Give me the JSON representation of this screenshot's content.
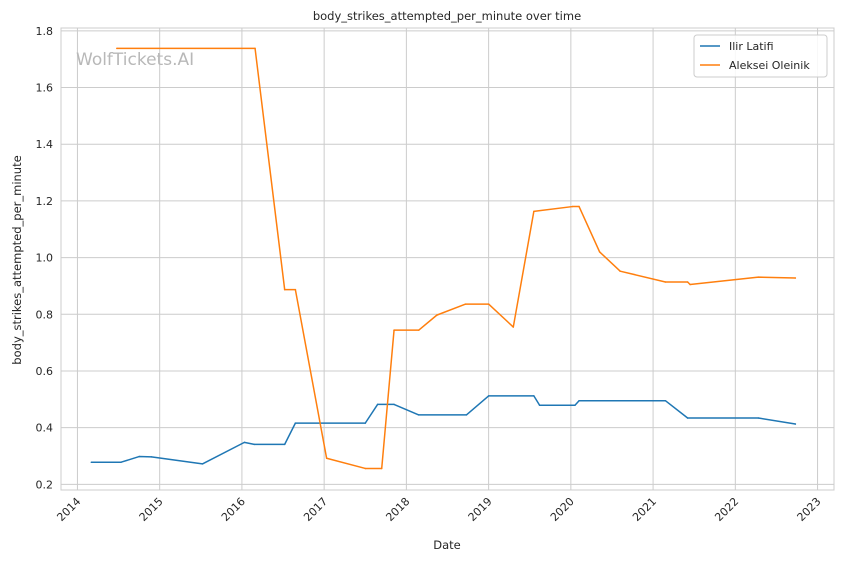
{
  "chart_data": {
    "type": "line",
    "title": "body_strikes_attempted_per_minute over time",
    "xlabel": "Date",
    "ylabel": "body_strikes_attempted_per_minute",
    "watermark": "WolfTickets.AI",
    "xlim": [
      2013.8,
      2023.2
    ],
    "ylim": [
      0.18,
      1.81
    ],
    "x_ticks": [
      2014,
      2015,
      2016,
      2017,
      2018,
      2019,
      2020,
      2021,
      2022,
      2023
    ],
    "x_tick_labels": [
      "2014",
      "2015",
      "2016",
      "2017",
      "2018",
      "2019",
      "2020",
      "2021",
      "2022",
      "2023"
    ],
    "y_ticks": [
      0.2,
      0.4,
      0.6,
      0.8,
      1.0,
      1.2,
      1.4,
      1.6,
      1.8
    ],
    "y_tick_labels": [
      "0.2",
      "0.4",
      "0.6",
      "0.8",
      "1.0",
      "1.2",
      "1.4",
      "1.6",
      "1.8"
    ],
    "grid": true,
    "legend_position": "top-right",
    "colors": {
      "blue": "#1f77b4",
      "orange": "#ff7f0e",
      "grid": "#cccccc"
    },
    "series": [
      {
        "name": "Ilir Latifi",
        "color": "#1f77b4",
        "points": [
          [
            2014.17,
            0.278
          ],
          [
            2014.53,
            0.278
          ],
          [
            2014.75,
            0.298
          ],
          [
            2014.9,
            0.297
          ],
          [
            2015.52,
            0.272
          ],
          [
            2016.03,
            0.348
          ],
          [
            2016.15,
            0.341
          ],
          [
            2016.52,
            0.341
          ],
          [
            2016.65,
            0.416
          ],
          [
            2017.5,
            0.416
          ],
          [
            2017.65,
            0.482
          ],
          [
            2017.85,
            0.482
          ],
          [
            2018.15,
            0.445
          ],
          [
            2018.73,
            0.445
          ],
          [
            2019.0,
            0.512
          ],
          [
            2019.55,
            0.512
          ],
          [
            2019.62,
            0.479
          ],
          [
            2020.05,
            0.479
          ],
          [
            2020.1,
            0.495
          ],
          [
            2021.15,
            0.495
          ],
          [
            2021.42,
            0.434
          ],
          [
            2022.28,
            0.434
          ],
          [
            2022.73,
            0.413
          ]
        ]
      },
      {
        "name": "Aleksei Oleinik",
        "color": "#ff7f0e",
        "points": [
          [
            2014.48,
            1.738
          ],
          [
            2016.16,
            1.738
          ],
          [
            2016.52,
            0.887
          ],
          [
            2016.65,
            0.887
          ],
          [
            2017.03,
            0.292
          ],
          [
            2017.5,
            0.256
          ],
          [
            2017.7,
            0.256
          ],
          [
            2017.85,
            0.744
          ],
          [
            2018.15,
            0.744
          ],
          [
            2018.37,
            0.797
          ],
          [
            2018.72,
            0.836
          ],
          [
            2019.0,
            0.836
          ],
          [
            2019.3,
            0.755
          ],
          [
            2019.55,
            1.163
          ],
          [
            2020.02,
            1.18
          ],
          [
            2020.1,
            1.18
          ],
          [
            2020.35,
            1.02
          ],
          [
            2020.6,
            0.952
          ],
          [
            2021.15,
            0.914
          ],
          [
            2021.42,
            0.914
          ],
          [
            2021.45,
            0.905
          ],
          [
            2022.28,
            0.931
          ],
          [
            2022.73,
            0.928
          ]
        ]
      }
    ]
  }
}
